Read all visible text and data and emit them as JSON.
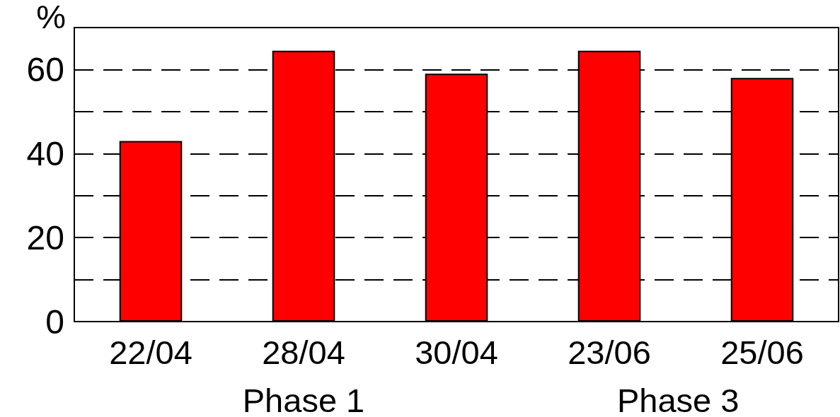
{
  "chart_data": {
    "type": "bar",
    "ylabel": "%",
    "categories": [
      "22/04",
      "28/04",
      "30/04",
      "23/06",
      "25/06"
    ],
    "values": [
      43,
      64.5,
      59,
      64.5,
      58
    ],
    "color": "#ff0000",
    "ylim": [
      0,
      70
    ],
    "yticks": [
      0,
      {
        "value": 10,
        "label": null
      },
      20,
      {
        "value": 30,
        "label": null
      },
      40,
      {
        "value": 50,
        "label": null
      },
      60
    ],
    "grid": "y",
    "annotations": [
      "Phase 1",
      "Phase 3"
    ]
  }
}
